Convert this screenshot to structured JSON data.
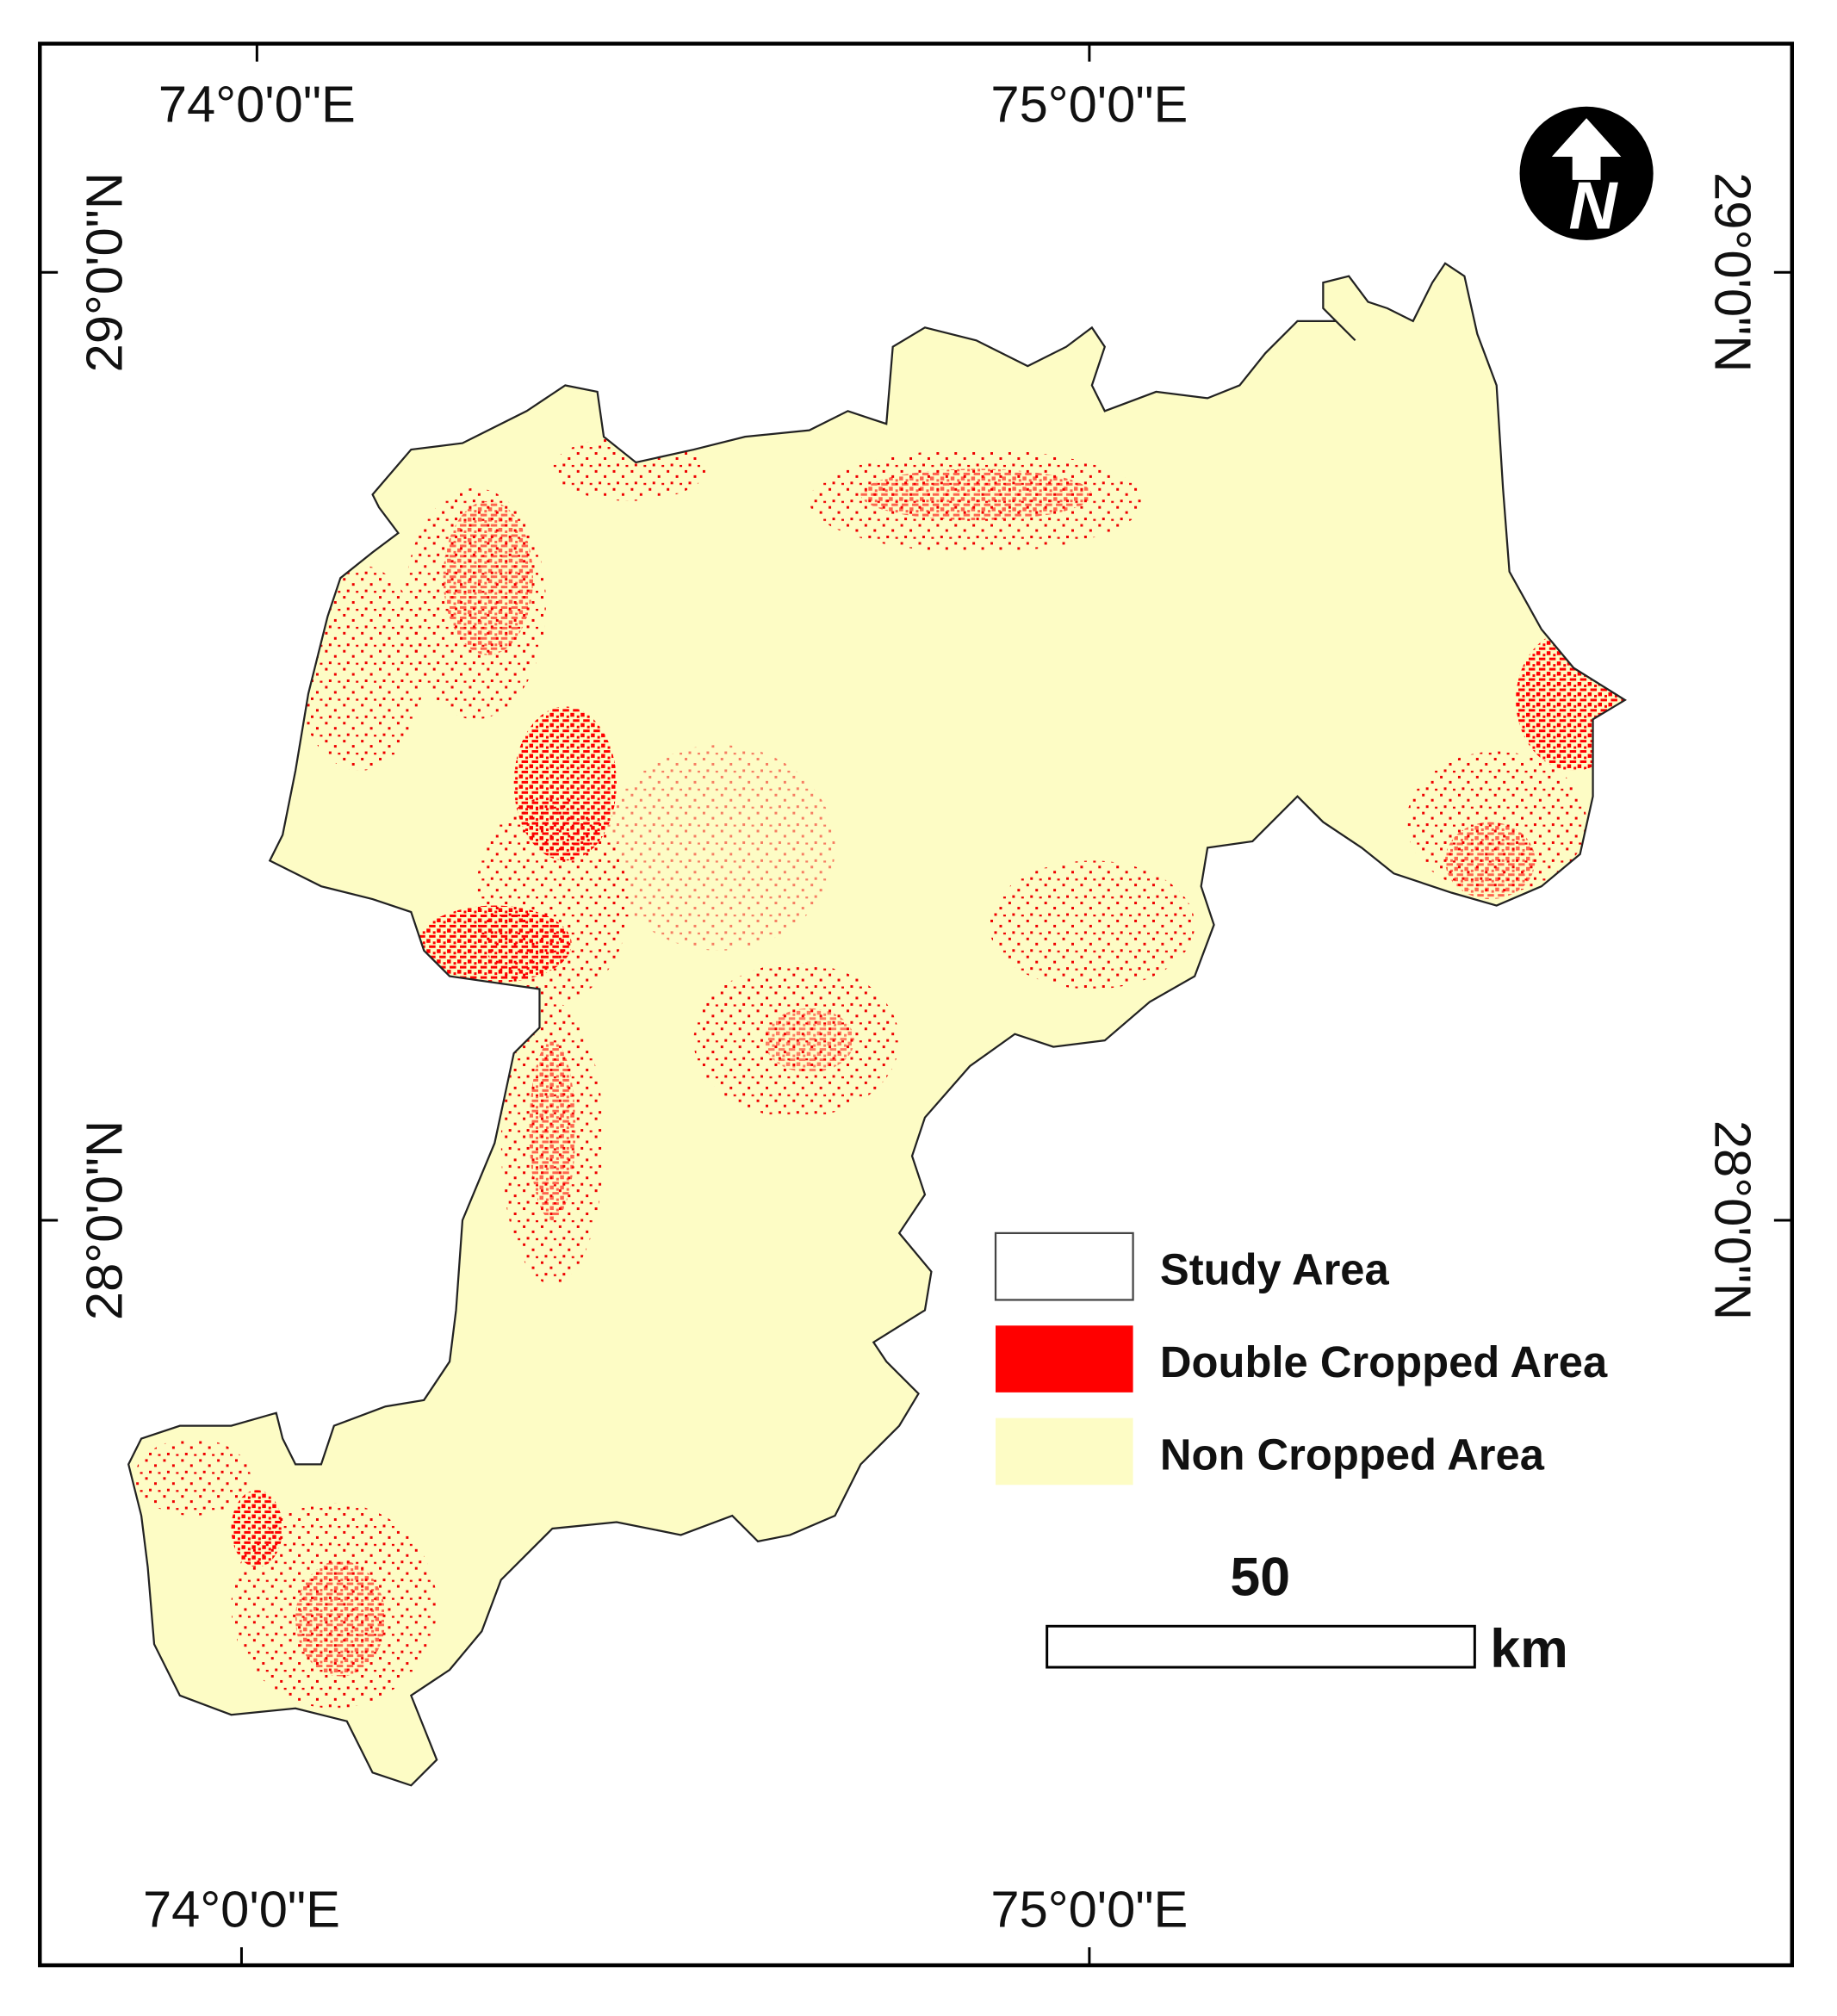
{
  "map": {
    "grid_labels": {
      "top": [
        "74°0'0\"E",
        "75°0'0\"E"
      ],
      "bottom": [
        "74°0'0\"E",
        "75°0'0\"E"
      ],
      "left": [
        "29°0'0\"N",
        "28°0'0\"N"
      ],
      "right": [
        "29°0'0\"N",
        "28°0'0\"N"
      ]
    },
    "legend": [
      {
        "label": "Study Area"
      },
      {
        "label": "Double Cropped Area"
      },
      {
        "label": "Non Cropped Area"
      }
    ],
    "scale_bar": {
      "value": "50",
      "unit": "km"
    },
    "north_arrow": "N"
  }
}
